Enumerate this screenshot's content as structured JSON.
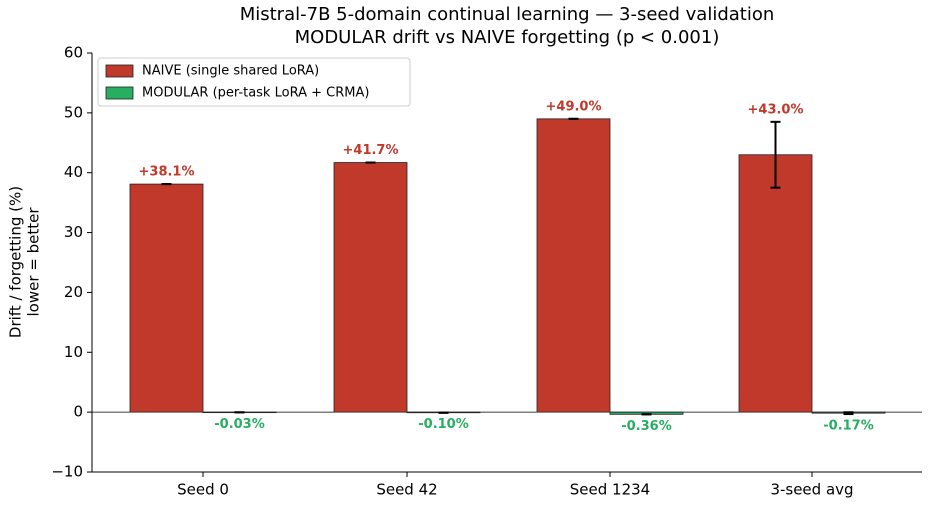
{
  "chart_data": {
    "type": "bar",
    "title": "Mistral-7B 5-domain continual learning — 3-seed validation",
    "subtitle": "MODULAR drift vs NAIVE forgetting  (p < 0.001)",
    "ylabel": [
      "Drift / forgetting (%)",
      "lower = better"
    ],
    "categories": [
      "Seed 0",
      "Seed 42",
      "Seed 1234",
      "3-seed avg"
    ],
    "series": [
      {
        "name": "NAIVE (single shared LoRA)",
        "color": "#c0392b",
        "label_color": "#c0392b",
        "values": [
          38.1,
          41.7,
          49.0,
          43.0
        ],
        "errors": [
          0,
          0,
          0,
          5.5
        ],
        "value_labels": [
          "+38.1%",
          "+41.7%",
          "+49.0%",
          "+43.0%"
        ]
      },
      {
        "name": "MODULAR (per-task LoRA + CRMA)",
        "color": "#27ae60",
        "label_color": "#27ae60",
        "values": [
          -0.03,
          -0.1,
          -0.36,
          -0.17
        ],
        "errors": [
          0,
          0,
          0,
          0.15
        ],
        "value_labels": [
          "-0.03%",
          "-0.10%",
          "-0.36%",
          "-0.17%"
        ]
      }
    ],
    "ylim": [
      -10,
      60
    ],
    "yticks": [
      {
        "value": -10,
        "label": "−10"
      },
      0,
      10,
      20,
      30,
      40,
      50,
      60
    ],
    "legend": "upper left"
  }
}
